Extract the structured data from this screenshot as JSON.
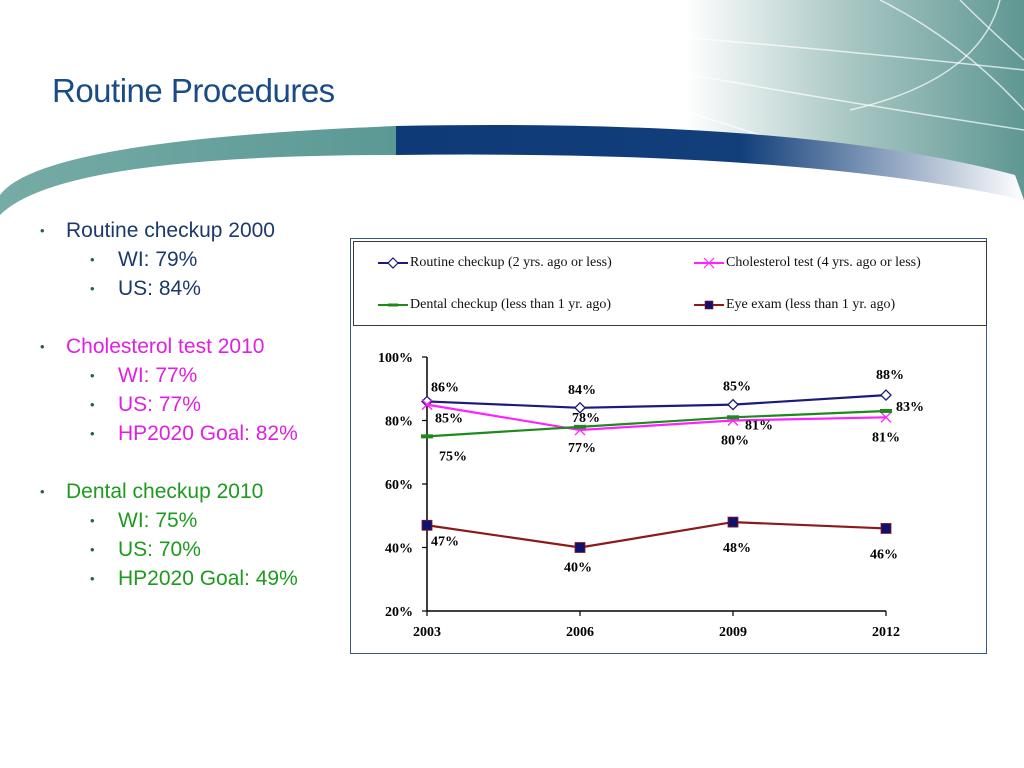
{
  "slide": {
    "title": "Routine Procedures"
  },
  "colors": {
    "title": "#1a4b86",
    "routine": "#1b1b7a",
    "cholesterol": "#ff22ff",
    "dental": "#1e8a1e",
    "eye": "#8b1a1a",
    "eye_marker": "#10106e"
  },
  "bullets": [
    {
      "label": "Routine checkup 2000",
      "color": "navy",
      "items": [
        "WI: 79%",
        "US: 84%"
      ]
    },
    {
      "label": "Cholesterol test 2010",
      "color": "magenta",
      "items": [
        "WI: 77%",
        "US: 77%",
        "HP2020 Goal: 82%"
      ]
    },
    {
      "label": "Dental checkup 2010",
      "color": "green",
      "items": [
        "WI: 75%",
        "US: 70%",
        "HP2020 Goal: 49%"
      ]
    }
  ],
  "chart_data": {
    "type": "line",
    "title": "",
    "xlabel": "",
    "ylabel": "",
    "categories": [
      "2003",
      "2006",
      "2009",
      "2012"
    ],
    "ylim": [
      20,
      100
    ],
    "yticks": [
      20,
      40,
      60,
      80,
      100
    ],
    "ytick_labels": [
      "20%",
      "40%",
      "60%",
      "80%",
      "100%"
    ],
    "grid": false,
    "legend_position": "top",
    "series": [
      {
        "name": "Routine checkup (2 yrs. ago or less)",
        "marker": "diamond",
        "values": [
          86,
          84,
          85,
          88
        ],
        "labels": [
          "86%",
          "84%",
          "85%",
          "88%"
        ]
      },
      {
        "name": "Cholesterol test (4 yrs. ago or less)",
        "marker": "x",
        "values": [
          85,
          77,
          80,
          81
        ],
        "labels": [
          "85%",
          "77%",
          "80%",
          "81%"
        ]
      },
      {
        "name": "Dental checkup (less than 1 yr. ago)",
        "marker": "dash",
        "values": [
          75,
          78,
          81,
          83
        ],
        "labels": [
          "75%",
          "78%",
          "81%",
          "83%"
        ]
      },
      {
        "name": "Eye exam (less than 1 yr. ago)",
        "marker": "square",
        "values": [
          47,
          40,
          48,
          46
        ],
        "labels": [
          "47%",
          "40%",
          "48%",
          "46%"
        ]
      }
    ]
  }
}
